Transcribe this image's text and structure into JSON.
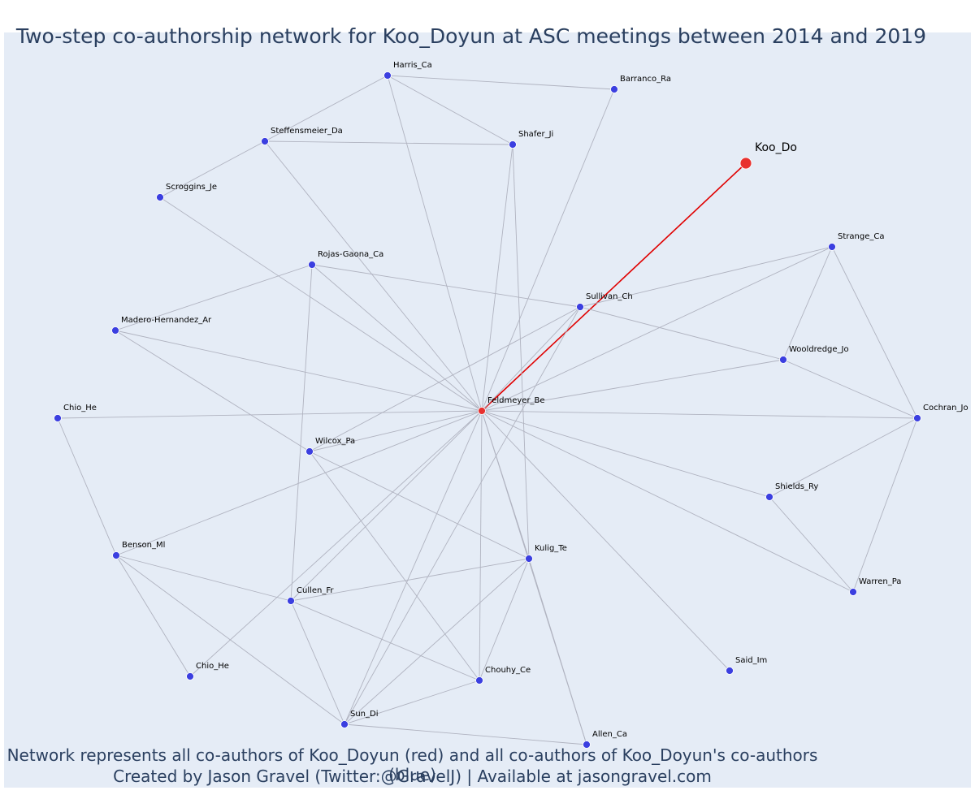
{
  "title": "Two-step co-authorship network for Koo_Doyun at ASC meetings between 2014 and 2019",
  "captions": {
    "line1": "Network represents all co-authors of Koo_Doyun (red) and all co-authors of Koo_Doyun's co-authors (blue)",
    "line2": "Created by Jason Gravel (Twitter:@GravelJ) | Available at jasongravel.com"
  },
  "colors": {
    "ego": "#e8312f",
    "first_degree": "#e8312f",
    "second_degree": "#3b3fe0",
    "edge": "#b0b3c0",
    "ego_edge": "#e00000"
  },
  "chart_data": {
    "type": "network",
    "nodes": [
      {
        "id": "Koo_Do",
        "group": "ego"
      },
      {
        "id": "Feldmeyer_Be",
        "group": "first_degree"
      },
      {
        "id": "Harris_Ca",
        "group": "second_degree"
      },
      {
        "id": "Barranco_Ra",
        "group": "second_degree"
      },
      {
        "id": "Steffensmeier_Da",
        "group": "second_degree"
      },
      {
        "id": "Shafer_Ji",
        "group": "second_degree"
      },
      {
        "id": "Scroggins_Je",
        "group": "second_degree"
      },
      {
        "id": "Rojas-Gaona_Ca",
        "group": "second_degree"
      },
      {
        "id": "Strange_Ca",
        "group": "second_degree"
      },
      {
        "id": "Sullivan_Ch",
        "group": "second_degree"
      },
      {
        "id": "Madero-Hernandez_Ar",
        "group": "second_degree"
      },
      {
        "id": "Wooldredge_Jo",
        "group": "second_degree"
      },
      {
        "id": "Chio_He",
        "group": "second_degree",
        "key": "Chio_He_1"
      },
      {
        "id": "Cochran_Jo",
        "group": "second_degree"
      },
      {
        "id": "Wilcox_Pa",
        "group": "second_degree"
      },
      {
        "id": "Shields_Ry",
        "group": "second_degree"
      },
      {
        "id": "Benson_Ml",
        "group": "second_degree"
      },
      {
        "id": "Kulig_Te",
        "group": "second_degree"
      },
      {
        "id": "Warren_Pa",
        "group": "second_degree"
      },
      {
        "id": "Cullen_Fr",
        "group": "second_degree"
      },
      {
        "id": "Said_Im",
        "group": "second_degree"
      },
      {
        "id": "Chio_He",
        "group": "second_degree",
        "key": "Chio_He_2"
      },
      {
        "id": "Chouhy_Ce",
        "group": "second_degree"
      },
      {
        "id": "Sun_Di",
        "group": "second_degree"
      },
      {
        "id": "Allen_Ca",
        "group": "second_degree"
      }
    ],
    "edges": [
      [
        "Koo_Do",
        "Feldmeyer_Be"
      ],
      [
        "Feldmeyer_Be",
        "Harris_Ca"
      ],
      [
        "Feldmeyer_Be",
        "Barranco_Ra"
      ],
      [
        "Feldmeyer_Be",
        "Steffensmeier_Da"
      ],
      [
        "Feldmeyer_Be",
        "Shafer_Ji"
      ],
      [
        "Feldmeyer_Be",
        "Scroggins_Je"
      ],
      [
        "Feldmeyer_Be",
        "Rojas-Gaona_Ca"
      ],
      [
        "Feldmeyer_Be",
        "Strange_Ca"
      ],
      [
        "Feldmeyer_Be",
        "Sullivan_Ch"
      ],
      [
        "Feldmeyer_Be",
        "Madero-Hernandez_Ar"
      ],
      [
        "Feldmeyer_Be",
        "Wooldredge_Jo"
      ],
      [
        "Feldmeyer_Be",
        "Chio_He_1"
      ],
      [
        "Feldmeyer_Be",
        "Cochran_Jo"
      ],
      [
        "Feldmeyer_Be",
        "Wilcox_Pa"
      ],
      [
        "Feldmeyer_Be",
        "Shields_Ry"
      ],
      [
        "Feldmeyer_Be",
        "Benson_Ml"
      ],
      [
        "Feldmeyer_Be",
        "Kulig_Te"
      ],
      [
        "Feldmeyer_Be",
        "Warren_Pa"
      ],
      [
        "Feldmeyer_Be",
        "Cullen_Fr"
      ],
      [
        "Feldmeyer_Be",
        "Said_Im"
      ],
      [
        "Feldmeyer_Be",
        "Chio_He_2"
      ],
      [
        "Feldmeyer_Be",
        "Chouhy_Ce"
      ],
      [
        "Feldmeyer_Be",
        "Sun_Di"
      ],
      [
        "Feldmeyer_Be",
        "Allen_Ca"
      ],
      [
        "Harris_Ca",
        "Barranco_Ra"
      ],
      [
        "Harris_Ca",
        "Steffensmeier_Da"
      ],
      [
        "Harris_Ca",
        "Shafer_Ji"
      ],
      [
        "Steffensmeier_Da",
        "Shafer_Ji"
      ],
      [
        "Steffensmeier_Da",
        "Scroggins_Je"
      ],
      [
        "Shafer_Ji",
        "Kulig_Te"
      ],
      [
        "Rojas-Gaona_Ca",
        "Sullivan_Ch"
      ],
      [
        "Rojas-Gaona_Ca",
        "Madero-Hernandez_Ar"
      ],
      [
        "Rojas-Gaona_Ca",
        "Cullen_Fr"
      ],
      [
        "Sullivan_Ch",
        "Strange_Ca"
      ],
      [
        "Sullivan_Ch",
        "Wooldredge_Jo"
      ],
      [
        "Sullivan_Ch",
        "Wilcox_Pa"
      ],
      [
        "Sullivan_Ch",
        "Sun_Di"
      ],
      [
        "Strange_Ca",
        "Wooldredge_Jo"
      ],
      [
        "Strange_Ca",
        "Cochran_Jo"
      ],
      [
        "Wooldredge_Jo",
        "Cochran_Jo"
      ],
      [
        "Madero-Hernandez_Ar",
        "Wilcox_Pa"
      ],
      [
        "Chio_He_1",
        "Benson_Ml"
      ],
      [
        "Wilcox_Pa",
        "Kulig_Te"
      ],
      [
        "Wilcox_Pa",
        "Chouhy_Ce"
      ],
      [
        "Cochran_Jo",
        "Shields_Ry"
      ],
      [
        "Cochran_Jo",
        "Warren_Pa"
      ],
      [
        "Shields_Ry",
        "Warren_Pa"
      ],
      [
        "Benson_Ml",
        "Cullen_Fr"
      ],
      [
        "Benson_Ml",
        "Chio_He_2"
      ],
      [
        "Benson_Ml",
        "Sun_Di"
      ],
      [
        "Kulig_Te",
        "Cullen_Fr"
      ],
      [
        "Kulig_Te",
        "Chouhy_Ce"
      ],
      [
        "Kulig_Te",
        "Sun_Di"
      ],
      [
        "Kulig_Te",
        "Allen_Ca"
      ],
      [
        "Cullen_Fr",
        "Chouhy_Ce"
      ],
      [
        "Cullen_Fr",
        "Sun_Di"
      ],
      [
        "Chouhy_Ce",
        "Sun_Di"
      ],
      [
        "Sun_Di",
        "Allen_Ca"
      ]
    ]
  }
}
